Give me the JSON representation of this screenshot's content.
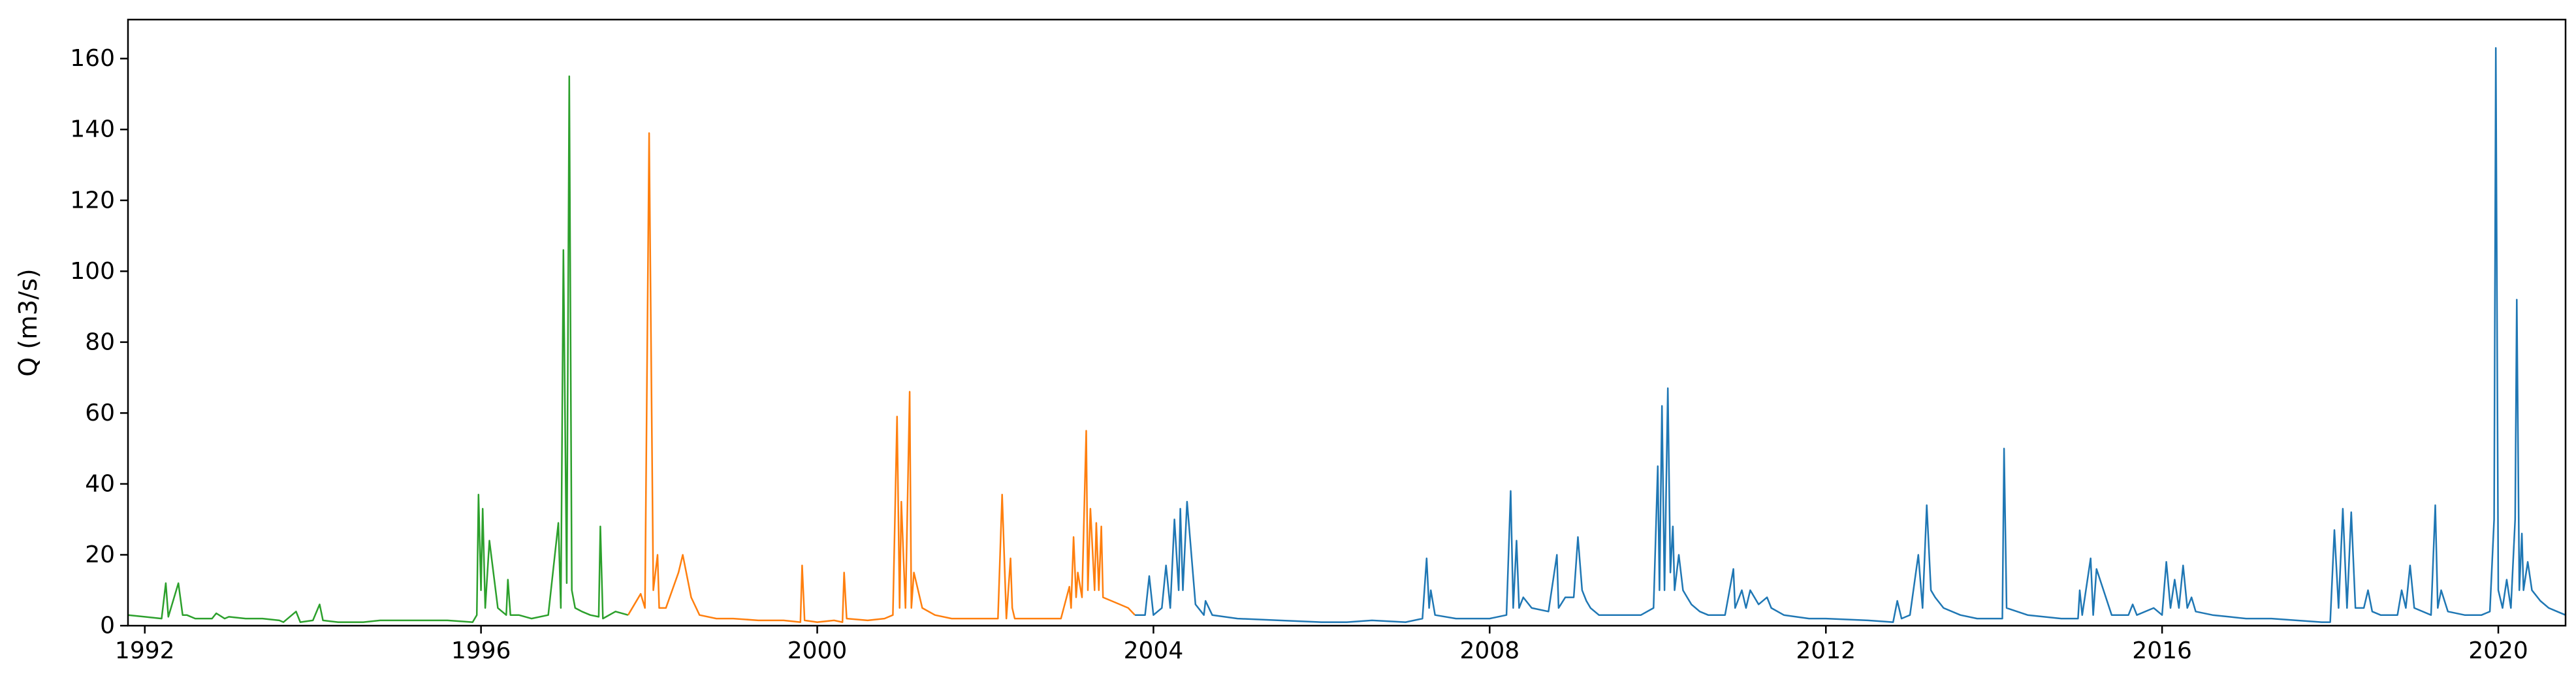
{
  "chart_data": {
    "type": "line",
    "title": "",
    "xlabel": "",
    "ylabel": "Q (m3/s)",
    "xlim": [
      1991.8,
      2020.8
    ],
    "ylim": [
      0,
      171
    ],
    "x_ticks": [
      1992,
      1996,
      2000,
      2004,
      2008,
      2012,
      2016,
      2020
    ],
    "x_tick_labels": [
      "1992",
      "1996",
      "2000",
      "2004",
      "2008",
      "2012",
      "2016",
      "2020"
    ],
    "y_ticks": [
      0,
      20,
      40,
      60,
      80,
      100,
      120,
      140,
      160
    ],
    "y_tick_labels": [
      "0",
      "20",
      "40",
      "60",
      "80",
      "100",
      "120",
      "140",
      "160"
    ],
    "grid": false,
    "legend": "none",
    "series": [
      {
        "color": "#2ca02c",
        "x": [
          1991.8,
          1992.0,
          1992.2,
          1992.25,
          1992.28,
          1992.4,
          1992.45,
          1992.5,
          1992.6,
          1992.8,
          1992.85,
          1992.95,
          1993.0,
          1993.2,
          1993.4,
          1993.6,
          1993.65,
          1993.8,
          1993.85,
          1994.0,
          1994.08,
          1994.12,
          1994.3,
          1994.6,
          1994.8,
          1995.0,
          1995.3,
          1995.6,
          1995.9,
          1995.95,
          1995.97,
          1996.0,
          1996.02,
          1996.05,
          1996.1,
          1996.2,
          1996.3,
          1996.32,
          1996.35,
          1996.45,
          1996.6,
          1996.8,
          1996.92,
          1996.95,
          1996.98,
          1997.02,
          1997.05,
          1997.08,
          1997.12,
          1997.2,
          1997.3,
          1997.4,
          1997.42,
          1997.45,
          1997.6,
          1997.75
        ],
        "y": [
          3,
          2.5,
          2,
          12,
          2.5,
          12,
          3,
          3,
          2,
          2,
          3.5,
          2,
          2.5,
          2,
          2,
          1.5,
          1,
          4,
          1,
          1.5,
          6,
          1.5,
          1,
          1,
          1.5,
          1.5,
          1.5,
          1.5,
          1,
          3,
          37,
          10,
          33,
          5,
          24,
          5,
          3,
          13,
          3,
          3,
          2,
          3,
          29,
          5,
          106,
          12,
          155,
          10,
          5,
          4,
          3,
          2.5,
          28,
          2,
          4,
          3
        ]
      },
      {
        "color": "#ff7f0e",
        "x": [
          1997.75,
          1997.9,
          1997.95,
          1998.0,
          1998.05,
          1998.1,
          1998.12,
          1998.2,
          1998.35,
          1998.4,
          1998.5,
          1998.6,
          1998.8,
          1999.0,
          1999.3,
          1999.6,
          1999.8,
          1999.82,
          1999.85,
          2000.0,
          2000.2,
          2000.3,
          2000.32,
          2000.35,
          2000.6,
          2000.8,
          2000.9,
          2000.95,
          2000.98,
          2001.0,
          2001.05,
          2001.1,
          2001.12,
          2001.15,
          2001.25,
          2001.4,
          2001.6,
          2001.8,
          2002.0,
          2002.15,
          2002.2,
          2002.25,
          2002.3,
          2002.32,
          2002.35,
          2002.5,
          2002.7,
          2002.9,
          2003.0,
          2003.02,
          2003.05,
          2003.08,
          2003.1,
          2003.15,
          2003.2,
          2003.22,
          2003.25,
          2003.3,
          2003.32,
          2003.35,
          2003.38,
          2003.4,
          2003.5,
          2003.6,
          2003.7,
          2003.78
        ],
        "y": [
          3,
          9,
          5,
          139,
          10,
          20,
          5,
          5,
          15,
          20,
          8,
          3,
          2,
          2,
          1.5,
          1.5,
          1,
          17,
          1.5,
          1,
          1.5,
          1,
          15,
          2,
          1.5,
          2,
          3,
          59,
          5,
          35,
          5,
          66,
          5,
          15,
          5,
          3,
          2,
          2,
          2,
          2,
          37,
          2,
          19,
          5,
          2,
          2,
          2,
          2,
          11,
          5,
          25,
          8,
          15,
          8,
          55,
          10,
          33,
          10,
          29,
          10,
          28,
          8,
          7,
          6,
          5,
          3
        ]
      },
      {
        "color": "#1f77b4",
        "x": [
          2003.78,
          2003.9,
          2003.95,
          2004.0,
          2004.1,
          2004.15,
          2004.2,
          2004.25,
          2004.3,
          2004.32,
          2004.35,
          2004.4,
          2004.5,
          2004.6,
          2004.62,
          2004.7,
          2005.0,
          2005.5,
          2006.0,
          2006.3,
          2006.6,
          2007.0,
          2007.2,
          2007.25,
          2007.28,
          2007.3,
          2007.35,
          2007.6,
          2008.0,
          2008.2,
          2008.25,
          2008.28,
          2008.32,
          2008.35,
          2008.4,
          2008.5,
          2008.7,
          2008.8,
          2008.82,
          2008.9,
          2009.0,
          2009.05,
          2009.1,
          2009.15,
          2009.2,
          2009.3,
          2009.5,
          2009.8,
          2009.95,
          2010.0,
          2010.02,
          2010.05,
          2010.08,
          2010.12,
          2010.15,
          2010.18,
          2010.2,
          2010.25,
          2010.3,
          2010.35,
          2010.4,
          2010.5,
          2010.6,
          2010.8,
          2010.9,
          2010.92,
          2011.0,
          2011.05,
          2011.1,
          2011.2,
          2011.3,
          2011.35,
          2011.5,
          2011.8,
          2012.0,
          2012.5,
          2012.8,
          2012.85,
          2012.9,
          2013.0,
          2013.1,
          2013.15,
          2013.2,
          2013.25,
          2013.3,
          2013.4,
          2013.6,
          2013.8,
          2014.0,
          2014.1,
          2014.12,
          2014.15,
          2014.4,
          2014.8,
          2015.0,
          2015.02,
          2015.05,
          2015.15,
          2015.18,
          2015.22,
          2015.4,
          2015.6,
          2015.65,
          2015.7,
          2015.9,
          2016.0,
          2016.05,
          2016.1,
          2016.15,
          2016.2,
          2016.25,
          2016.3,
          2016.35,
          2016.4,
          2016.6,
          2016.8,
          2017.0,
          2017.3,
          2017.6,
          2017.9,
          2018.0,
          2018.05,
          2018.1,
          2018.15,
          2018.2,
          2018.25,
          2018.3,
          2018.4,
          2018.45,
          2018.5,
          2018.6,
          2018.8,
          2018.85,
          2018.9,
          2018.95,
          2019.0,
          2019.2,
          2019.25,
          2019.28,
          2019.32,
          2019.4,
          2019.6,
          2019.8,
          2019.9,
          2019.95,
          2019.97,
          2020.0,
          2020.05,
          2020.1,
          2020.15,
          2020.2,
          2020.22,
          2020.25,
          2020.28,
          2020.3,
          2020.35,
          2020.4,
          2020.5,
          2020.6,
          2020.7,
          2020.8
        ],
        "y": [
          3,
          3,
          14,
          3,
          5,
          17,
          5,
          30,
          10,
          33,
          10,
          35,
          6,
          3,
          7,
          3,
          2,
          1.5,
          1,
          1,
          1.5,
          1,
          2,
          19,
          5,
          10,
          3,
          2,
          2,
          3,
          38,
          5,
          24,
          5,
          8,
          5,
          4,
          20,
          5,
          8,
          8,
          25,
          10,
          7,
          5,
          3,
          3,
          3,
          5,
          45,
          10,
          62,
          10,
          67,
          15,
          28,
          10,
          20,
          10,
          8,
          6,
          4,
          3,
          3,
          16,
          5,
          10,
          5,
          10,
          6,
          8,
          5,
          3,
          2,
          2,
          1.5,
          1,
          7,
          2,
          3,
          20,
          5,
          34,
          10,
          8,
          5,
          3,
          2,
          2,
          2,
          50,
          5,
          3,
          2,
          2,
          10,
          3,
          19,
          3,
          16,
          3,
          3,
          6,
          3,
          5,
          3,
          18,
          5,
          13,
          5,
          17,
          5,
          8,
          4,
          3,
          2.5,
          2,
          2,
          1.5,
          1,
          1,
          27,
          5,
          33,
          5,
          32,
          5,
          5,
          10,
          4,
          3,
          3,
          10,
          5,
          17,
          5,
          3,
          34,
          5,
          10,
          4,
          3,
          3,
          4,
          30,
          163,
          10,
          5,
          13,
          5,
          30,
          92,
          10,
          26,
          10,
          18,
          10,
          7,
          5,
          4,
          3
        ]
      }
    ]
  }
}
